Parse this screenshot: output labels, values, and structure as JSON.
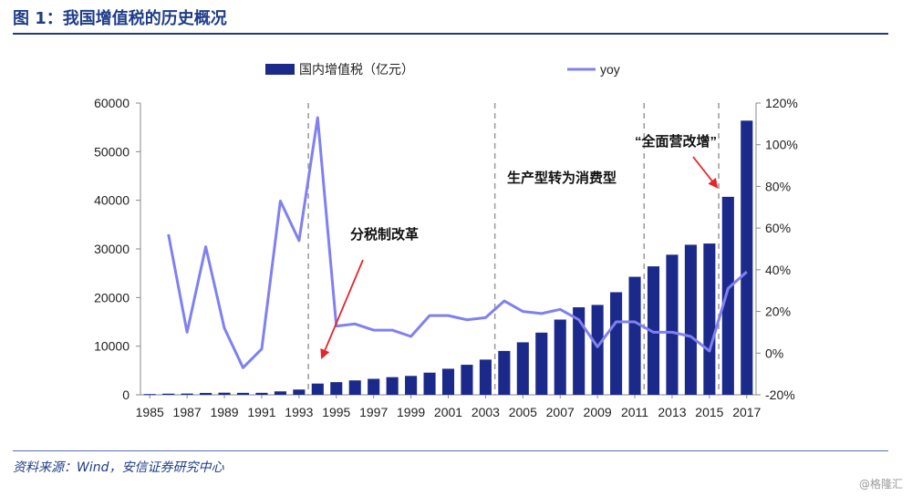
{
  "title": "图 1：我国增值税的历史概况",
  "source": "资料来源：Wind，安信证券研究中心",
  "watermark": "@格隆汇",
  "colors": {
    "bar": "#1b2a8a",
    "line": "#8080f0",
    "divider": "#999999",
    "arrow": "#e3262b",
    "title": "#1f3c88"
  },
  "chart_data": {
    "type": "bar+line",
    "x": [
      1985,
      1986,
      1987,
      1988,
      1989,
      1990,
      1991,
      1992,
      1993,
      1994,
      1995,
      1996,
      1997,
      1998,
      1999,
      2000,
      2001,
      2002,
      2003,
      2004,
      2005,
      2006,
      2007,
      2008,
      2009,
      2010,
      2011,
      2012,
      2013,
      2014,
      2015,
      2016,
      2017
    ],
    "x_tick_labels": [
      "1985",
      "1987",
      "1989",
      "1991",
      "1993",
      "1995",
      "1997",
      "1999",
      "2001",
      "2003",
      "2005",
      "2007",
      "2009",
      "2011",
      "2013",
      "2015",
      "2017"
    ],
    "series": [
      {
        "name": "国内增值税（亿元）",
        "type": "bar",
        "axis": "left",
        "values": [
          148,
          232,
          254,
          385,
          430,
          400,
          406,
          702,
          1081,
          2308,
          2602,
          2962,
          3283,
          3628,
          3882,
          4553,
          5357,
          6178,
          7237,
          9018,
          10792,
          12785,
          15470,
          17997,
          18481,
          21093,
          24267,
          26416,
          28810,
          30855,
          31109,
          40712,
          56378
        ]
      },
      {
        "name": "yoy",
        "type": "line",
        "axis": "right",
        "values": [
          null,
          57,
          10,
          51,
          12,
          -7,
          2,
          73,
          54,
          113,
          13,
          14,
          11,
          11,
          8,
          18,
          18,
          16,
          17,
          25,
          20,
          19,
          21,
          16,
          3,
          15,
          15,
          10,
          10,
          8,
          1,
          31,
          39
        ]
      }
    ],
    "y_left": {
      "min": 0,
      "max": 60000,
      "ticks": [
        "0",
        "10000",
        "20000",
        "30000",
        "40000",
        "50000",
        "60000"
      ]
    },
    "y_right": {
      "min": -20,
      "max": 120,
      "ticks": [
        "-20%",
        "0%",
        "20%",
        "40%",
        "60%",
        "80%",
        "100%",
        "120%"
      ]
    },
    "dividers": [
      1993.5,
      2003.5,
      2011.5,
      2015.5
    ],
    "annotations": [
      {
        "text": "分税制改革"
      },
      {
        "text": "生产型转为消费型"
      },
      {
        "text": "“全面营改增”"
      }
    ]
  }
}
